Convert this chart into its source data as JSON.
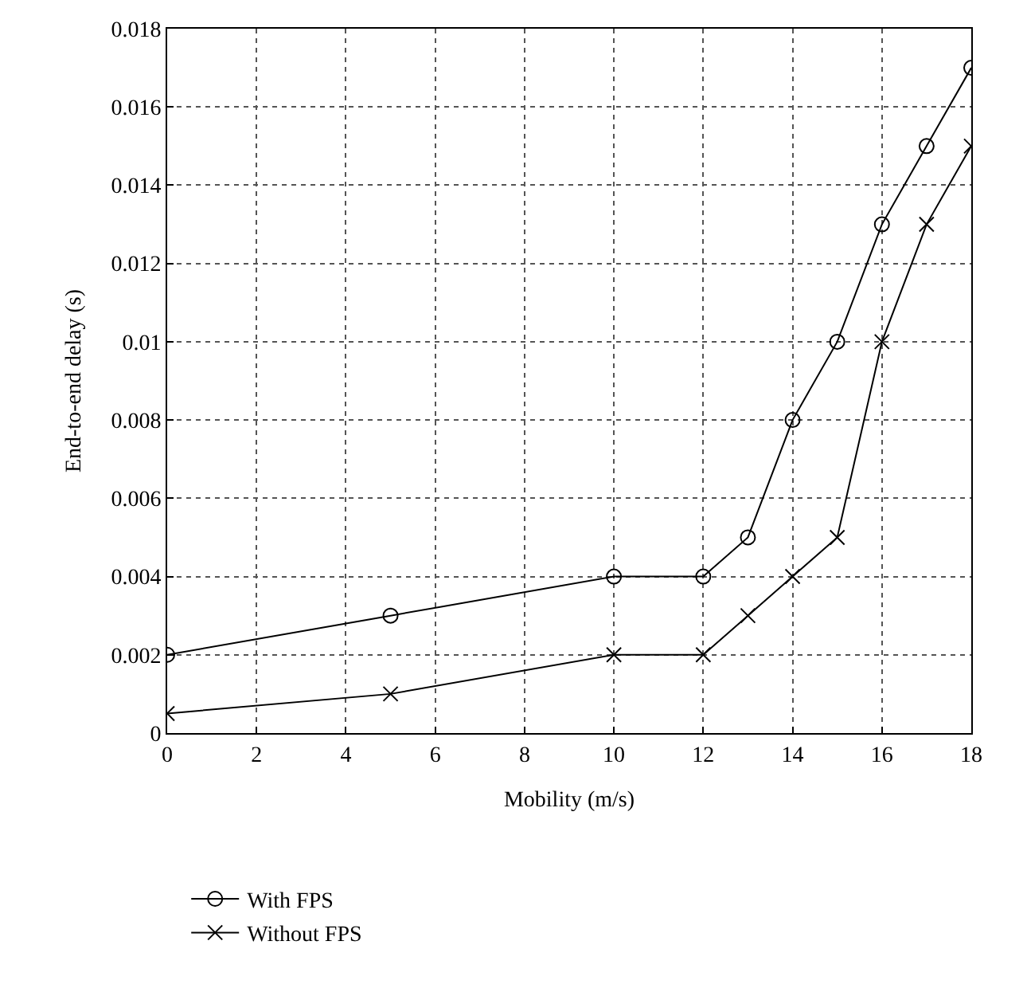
{
  "chart_data": {
    "type": "line",
    "xlabel": "Mobility (m/s)",
    "ylabel": "End-to-end delay (s)",
    "x": [
      0,
      5,
      10,
      12,
      13,
      14,
      15,
      16,
      17,
      18
    ],
    "series": [
      {
        "name": "With FPS",
        "color": "#000000",
        "marker": "circle",
        "values": [
          0.002,
          0.003,
          0.004,
          0.004,
          0.005,
          0.008,
          0.01,
          0.013,
          0.015,
          0.017
        ]
      },
      {
        "name": "Without FPS",
        "color": "#000000",
        "marker": "cross",
        "values": [
          0.0005,
          0.001,
          0.002,
          0.002,
          0.003,
          0.004,
          0.005,
          0.01,
          0.013,
          0.015
        ]
      }
    ],
    "xlim": [
      0,
      18
    ],
    "xticks": [
      0,
      2,
      4,
      6,
      8,
      10,
      12,
      14,
      16,
      18
    ],
    "ylim": [
      0,
      0.018
    ],
    "yticks": [
      0,
      0.002,
      0.004,
      0.006,
      0.008,
      0.01,
      0.012,
      0.014,
      0.016,
      0.018
    ],
    "grid": true,
    "legend": "bottom left",
    "line_style": "solid"
  }
}
